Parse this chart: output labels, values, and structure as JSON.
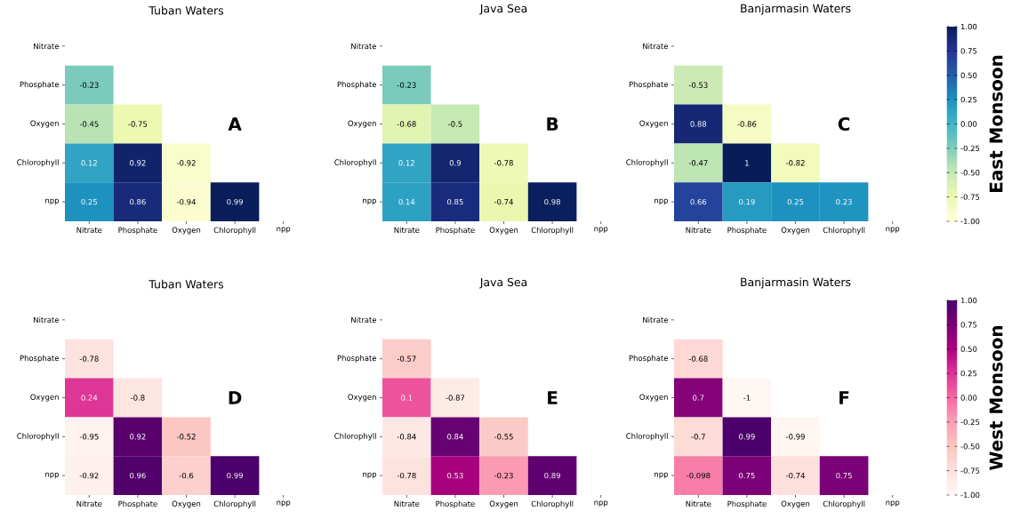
{
  "chart_data": [
    {
      "type": "heatmap",
      "title": "Tuban Waters",
      "categories": [
        "Nitrate",
        "Phosphate",
        "Oxygen",
        "Chlorophyll",
        "npp"
      ],
      "y_categories": [
        "Nitrate",
        "Phosphate",
        "Oxygen",
        "Chlorophyll",
        "npp"
      ],
      "cells": [
        [
          null,
          null,
          null,
          null,
          null
        ],
        [
          -0.23,
          null,
          null,
          null,
          null
        ],
        [
          -0.45,
          -0.75,
          null,
          null,
          null
        ],
        [
          0.12,
          0.92,
          -0.92,
          null,
          null
        ],
        [
          0.25,
          0.86,
          -0.94,
          0.99,
          null
        ]
      ],
      "data_labels": true,
      "colors": [
        "#ffffd9",
        "#edf8b1",
        "#c7e9b4",
        "#7fcdbb",
        "#41b6c4",
        "#1d91c0",
        "#225ea8",
        "#253494",
        "#081d58"
      ],
      "annotations": [
        "A"
      ]
    },
    {
      "type": "heatmap",
      "title": "Java Sea",
      "categories": [
        "Nitrate",
        "Phosphate",
        "Oxygen",
        "Chlorophyll",
        "npp"
      ],
      "y_categories": [
        "Nitrate",
        "Phosphate",
        "Oxygen",
        "Chlorophyll",
        "npp"
      ],
      "cells": [
        [
          null,
          null,
          null,
          null,
          null
        ],
        [
          -0.23,
          null,
          null,
          null,
          null
        ],
        [
          -0.68,
          -0.5,
          null,
          null,
          null
        ],
        [
          0.12,
          0.9,
          -0.78,
          null,
          null
        ],
        [
          0.14,
          0.85,
          -0.74,
          0.98,
          null
        ]
      ],
      "data_labels": true,
      "colors": [
        "#ffffd9",
        "#edf8b1",
        "#c7e9b4",
        "#7fcdbb",
        "#41b6c4",
        "#1d91c0",
        "#225ea8",
        "#253494",
        "#081d58"
      ],
      "annotations": [
        "B"
      ]
    },
    {
      "type": "heatmap",
      "title": "Banjarmasin Waters",
      "categories": [
        "Nitrate",
        "Phosphate",
        "Oxygen",
        "Chlorophyll",
        "npp"
      ],
      "y_categories": [
        "Nitrate",
        "Phosphate",
        "Oxygen",
        "Chlorophyll",
        "npp"
      ],
      "cells": [
        [
          null,
          null,
          null,
          null,
          null
        ],
        [
          -0.53,
          null,
          null,
          null,
          null
        ],
        [
          0.88,
          -0.86,
          null,
          null,
          null
        ],
        [
          -0.47,
          1,
          -0.82,
          null,
          null
        ],
        [
          0.66,
          0.19,
          0.25,
          0.23,
          null
        ]
      ],
      "data_labels": true,
      "clim": [
        -1,
        1
      ],
      "colors": [
        "#ffffd9",
        "#edf8b1",
        "#c7e9b4",
        "#7fcdbb",
        "#41b6c4",
        "#1d91c0",
        "#225ea8",
        "#253494",
        "#081d58"
      ],
      "annotations": [
        "C"
      ],
      "clabel": "East Monsoon",
      "cticks": [
        {
          "value": 1,
          "label": "1.00"
        },
        {
          "value": 0.75,
          "label": "0.75"
        },
        {
          "value": 0.5,
          "label": "0.50"
        },
        {
          "value": 0.25,
          "label": "0.25"
        },
        {
          "value": 0,
          "label": "0.00"
        },
        {
          "value": -0.25,
          "label": "-0.25"
        },
        {
          "value": -0.5,
          "label": "-0.50"
        },
        {
          "value": -0.75,
          "label": "-0.75"
        },
        {
          "value": -1,
          "label": "-1.00"
        }
      ]
    },
    {
      "type": "heatmap",
      "title": "Tuban Waters",
      "categories": [
        "Nitrate",
        "Phosphate",
        "Oxygen",
        "Chlorophyll",
        "npp"
      ],
      "y_categories": [
        "Nitrate",
        "Phosphate",
        "Oxygen",
        "Chlorophyll",
        "npp"
      ],
      "cells": [
        [
          null,
          null,
          null,
          null,
          null
        ],
        [
          -0.78,
          null,
          null,
          null,
          null
        ],
        [
          0.24,
          -0.8,
          null,
          null,
          null
        ],
        [
          -0.95,
          0.92,
          -0.52,
          null,
          null
        ],
        [
          -0.92,
          0.96,
          -0.6,
          0.99,
          null
        ]
      ],
      "data_labels": true,
      "colors": [
        "#fff7f3",
        "#fde0dd",
        "#fcc5c0",
        "#fa9fb5",
        "#f768a1",
        "#dd3497",
        "#ae017e",
        "#7a0177",
        "#49006a"
      ],
      "annotations": [
        "D"
      ]
    },
    {
      "type": "heatmap",
      "title": "Java Sea",
      "categories": [
        "Nitrate",
        "Phosphate",
        "Oxygen",
        "Chlorophyll",
        "npp"
      ],
      "y_categories": [
        "Nitrate",
        "Phosphate",
        "Oxygen",
        "Chlorophyll",
        "npp"
      ],
      "cells": [
        [
          null,
          null,
          null,
          null,
          null
        ],
        [
          -0.57,
          null,
          null,
          null,
          null
        ],
        [
          0.1,
          -0.87,
          null,
          null,
          null
        ],
        [
          -0.84,
          0.84,
          -0.55,
          null,
          null
        ],
        [
          -0.78,
          0.53,
          -0.23,
          0.89,
          null
        ]
      ],
      "data_labels": true,
      "colors": [
        "#fff7f3",
        "#fde0dd",
        "#fcc5c0",
        "#fa9fb5",
        "#f768a1",
        "#dd3497",
        "#ae017e",
        "#7a0177",
        "#49006a"
      ],
      "annotations": [
        "E"
      ]
    },
    {
      "type": "heatmap",
      "title": "Banjarmasin Waters",
      "categories": [
        "Nitrate",
        "Phosphate",
        "Oxygen",
        "Chlorophyll",
        "npp"
      ],
      "y_categories": [
        "Nitrate",
        "Phosphate",
        "Oxygen",
        "Chlorophyll",
        "npp"
      ],
      "cells": [
        [
          null,
          null,
          null,
          null,
          null
        ],
        [
          -0.68,
          null,
          null,
          null,
          null
        ],
        [
          0.7,
          -1,
          null,
          null,
          null
        ],
        [
          -0.7,
          0.99,
          -0.99,
          null,
          null
        ],
        [
          -0.098,
          0.75,
          -0.74,
          0.75,
          null
        ]
      ],
      "data_labels": true,
      "clim": [
        -1,
        1
      ],
      "colors": [
        "#fff7f3",
        "#fde0dd",
        "#fcc5c0",
        "#fa9fb5",
        "#f768a1",
        "#dd3497",
        "#ae017e",
        "#7a0177",
        "#49006a"
      ],
      "annotations": [
        "F"
      ],
      "clabel": "West Monsoon",
      "cticks": [
        {
          "value": 1,
          "label": "1.00"
        },
        {
          "value": 0.75,
          "label": "0.75"
        },
        {
          "value": 0.5,
          "label": "0.50"
        },
        {
          "value": 0.25,
          "label": "0.25"
        },
        {
          "value": 0,
          "label": "0.00"
        },
        {
          "value": -0.25,
          "label": "-0.25"
        },
        {
          "value": -0.5,
          "label": "-0.50"
        },
        {
          "value": -0.75,
          "label": "-0.75"
        },
        {
          "value": -1,
          "label": "-1.00"
        }
      ]
    }
  ]
}
